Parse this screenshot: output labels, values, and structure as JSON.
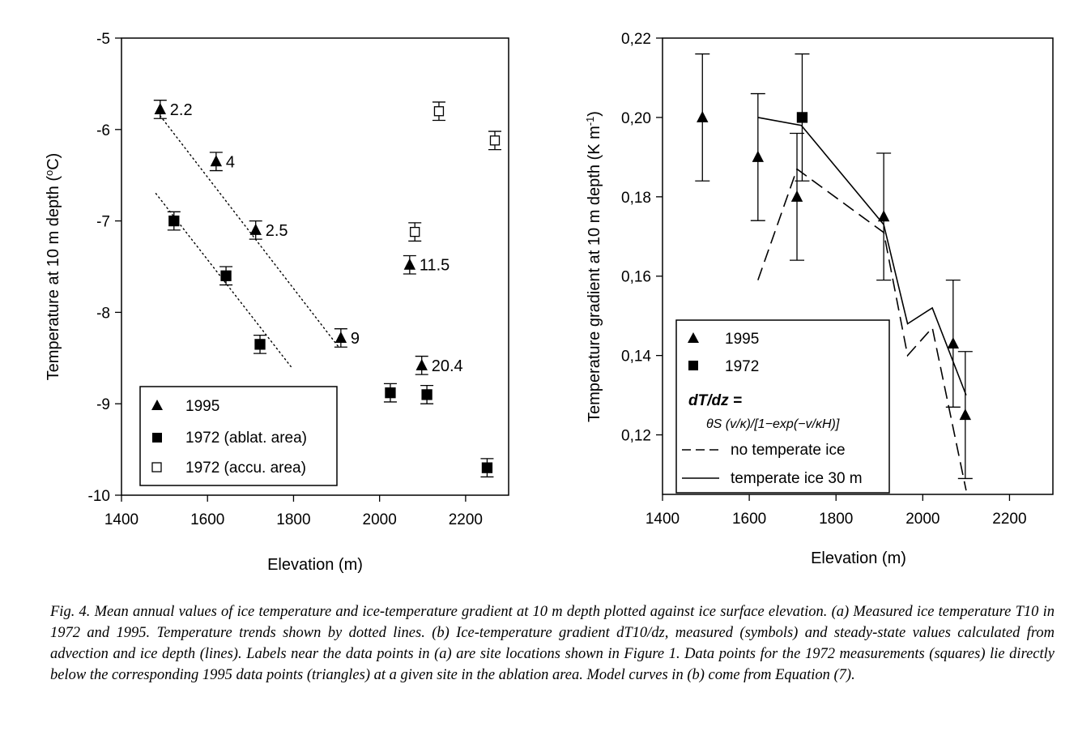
{
  "chart_data": [
    {
      "id": "a",
      "type": "scatter",
      "xlabel": "Elevation (m)",
      "ylabel": "Temperature at 10 m depth (oC)",
      "xlim": [
        1400,
        2300
      ],
      "ylim": [
        -10,
        -5
      ],
      "x_ticks": [
        "1400",
        "1600",
        "1800",
        "2000",
        "2200"
      ],
      "y_ticks": [
        "-5",
        "-6",
        "-7",
        "-8",
        "-9",
        "-10"
      ],
      "legend_position": "bottom-left",
      "series": [
        {
          "name": "1995",
          "marker": "triangle-filled",
          "points": [
            {
              "x": 1490,
              "y": -5.78,
              "err": 0.1,
              "label": "2.2"
            },
            {
              "x": 1620,
              "y": -6.35,
              "err": 0.1,
              "label": "4"
            },
            {
              "x": 1712,
              "y": -7.1,
              "err": 0.1,
              "label": "2.5"
            },
            {
              "x": 1910,
              "y": -8.28,
              "err": 0.1,
              "label": "9"
            },
            {
              "x": 2070,
              "y": -7.48,
              "err": 0.1,
              "label": "11.5"
            },
            {
              "x": 2098,
              "y": -8.58,
              "err": 0.1,
              "label": "20.4"
            }
          ]
        },
        {
          "name": "1972 (ablat. area)",
          "marker": "square-filled",
          "points": [
            {
              "x": 1522,
              "y": -7.0,
              "err": 0.1
            },
            {
              "x": 1643,
              "y": -7.6,
              "err": 0.1
            },
            {
              "x": 1722,
              "y": -8.35,
              "err": 0.1
            },
            {
              "x": 2025,
              "y": -8.88,
              "err": 0.1
            },
            {
              "x": 2110,
              "y": -8.9,
              "err": 0.1
            },
            {
              "x": 2250,
              "y": -9.7,
              "err": 0.1
            }
          ]
        },
        {
          "name": "1972 (accu. area)",
          "marker": "square-open",
          "points": [
            {
              "x": 2082,
              "y": -7.12,
              "err": 0.1
            },
            {
              "x": 2138,
              "y": -5.8,
              "err": 0.1
            },
            {
              "x": 2268,
              "y": -6.12,
              "err": 0.1
            }
          ]
        }
      ],
      "trend_lines": [
        {
          "x": [
            1490,
            1905
          ],
          "y": [
            -5.85,
            -8.38
          ],
          "style": "dotted"
        },
        {
          "x": [
            1480,
            1795
          ],
          "y": [
            -6.7,
            -8.6
          ],
          "style": "dotted"
        }
      ]
    },
    {
      "id": "b",
      "type": "line",
      "xlabel": "Elevation (m)",
      "ylabel": "Temperature gradient at 10 m depth (K m-1)",
      "xlim": [
        1400,
        2300
      ],
      "ylim": [
        0.105,
        0.22
      ],
      "x_ticks": [
        "1400",
        "1600",
        "1800",
        "2000",
        "2200"
      ],
      "y_ticks": [
        "0,22",
        "0,20",
        "0,18",
        "0,16",
        "0,14",
        "0,12"
      ],
      "legend_position": "bottom-left",
      "legend_equation_title": "dT/dz =",
      "legend_equation_body": "θS (v/κ)/[1−exp(−v/κH)]",
      "series": [
        {
          "name": "1995",
          "marker": "triangle-filled",
          "points": [
            {
              "x": 1492,
              "y": 0.2,
              "err_up": 0.016,
              "err_down": 0.016
            },
            {
              "x": 1620,
              "y": 0.19,
              "err_up": 0.016,
              "err_down": 0.016
            },
            {
              "x": 1710,
              "y": 0.18,
              "err_up": 0.016,
              "err_down": 0.016
            },
            {
              "x": 1910,
              "y": 0.175,
              "err_up": 0.016,
              "err_down": 0.016
            },
            {
              "x": 2070,
              "y": 0.143,
              "err_up": 0.016,
              "err_down": 0.016
            },
            {
              "x": 2098,
              "y": 0.125,
              "err_up": 0.016,
              "err_down": 0.016
            }
          ]
        },
        {
          "name": "1972",
          "marker": "square-filled",
          "points": [
            {
              "x": 1722,
              "y": 0.2,
              "err_up": 0.016,
              "err_down": 0.016
            }
          ]
        },
        {
          "name": "no temperate ice",
          "marker": "none",
          "line": "dashed",
          "x": [
            1620,
            1710,
            1910,
            1965,
            2022,
            2100
          ],
          "y": [
            0.159,
            0.187,
            0.171,
            0.14,
            0.147,
            0.106
          ]
        },
        {
          "name": "temperate ice 30 m",
          "marker": "none",
          "line": "solid",
          "x": [
            1620,
            1720,
            1910,
            1965,
            2022,
            2100
          ],
          "y": [
            0.2,
            0.198,
            0.173,
            0.148,
            0.152,
            0.13
          ]
        }
      ]
    }
  ],
  "caption": "Fig. 4. Mean annual values of ice temperature and ice-temperature gradient at 10 m depth plotted against ice surface elevation. (a) Measured ice temperature T10 in 1972 and 1995. Temperature trends shown by dotted lines. (b) Ice-temperature gradient dT10/dz, measured (symbols) and steady-state values calculated from advection and ice depth (lines). Labels near the data points in (a) are site locations shown in Figure 1. Data points for the 1972 measurements (squares) lie directly below the corresponding 1995 data points (triangles) at a given site in the ablation area. Model curves in (b) come from Equation (7)."
}
